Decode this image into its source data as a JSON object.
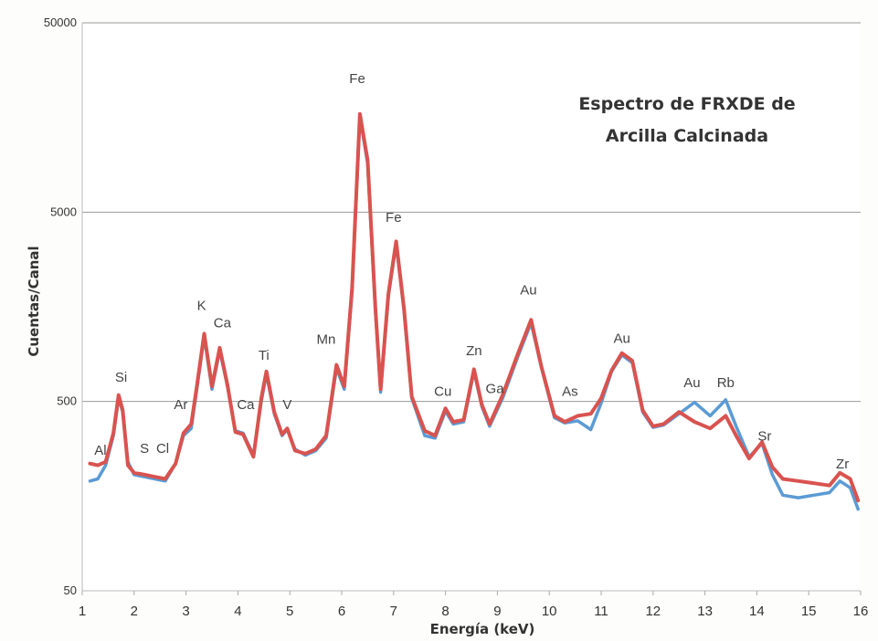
{
  "chart_data": {
    "type": "line",
    "title_lines": [
      "Espectro de FRXDE de",
      "Arcilla Calcinada"
    ],
    "xlabel": "Energía (keV)",
    "ylabel": "Cuentas/Canal",
    "xlim": [
      1,
      16
    ],
    "ylim": [
      50,
      50000
    ],
    "yscale": "log",
    "x_ticks": [
      {
        "v": 1,
        "label": "1"
      },
      {
        "v": 2,
        "label": "2"
      },
      {
        "v": 3,
        "label": "3"
      },
      {
        "v": 4,
        "label": "4"
      },
      {
        "v": 5,
        "label": "5"
      },
      {
        "v": 6,
        "label": "6"
      },
      {
        "v": 7,
        "label": "7"
      },
      {
        "v": 8,
        "label": "8"
      },
      {
        "v": 9,
        "label": "9"
      },
      {
        "v": 10,
        "label": "10"
      },
      {
        "v": 11,
        "label": "11"
      },
      {
        "v": 12,
        "label": "12"
      },
      {
        "v": 13,
        "label": "13"
      },
      {
        "v": 14,
        "label": "14"
      },
      {
        "v": 15,
        "label": "15"
      },
      {
        "v": 16,
        "label": "16"
      }
    ],
    "y_ticks": [
      {
        "v": 50,
        "label": "50"
      },
      {
        "v": 500,
        "label": "500"
      },
      {
        "v": 5000,
        "label": "5000"
      },
      {
        "v": 50000,
        "label": "50000"
      }
    ],
    "grid": "horizontal",
    "series": [
      {
        "color": "#5b9bd5",
        "points": [
          [
            1.15,
            190
          ],
          [
            1.3,
            195
          ],
          [
            1.45,
            230
          ],
          [
            1.6,
            330
          ],
          [
            1.7,
            520
          ],
          [
            1.78,
            440
          ],
          [
            1.88,
            240
          ],
          [
            2.0,
            205
          ],
          [
            2.2,
            200
          ],
          [
            2.4,
            195
          ],
          [
            2.6,
            190
          ],
          [
            2.8,
            235
          ],
          [
            2.95,
            330
          ],
          [
            3.1,
            360
          ],
          [
            3.2,
            560
          ],
          [
            3.35,
            1100
          ],
          [
            3.5,
            580
          ],
          [
            3.65,
            930
          ],
          [
            3.8,
            600
          ],
          [
            3.95,
            350
          ],
          [
            4.1,
            340
          ],
          [
            4.3,
            260
          ],
          [
            4.45,
            500
          ],
          [
            4.55,
            700
          ],
          [
            4.7,
            430
          ],
          [
            4.85,
            330
          ],
          [
            4.95,
            355
          ],
          [
            5.1,
            280
          ],
          [
            5.3,
            260
          ],
          [
            5.5,
            275
          ],
          [
            5.7,
            320
          ],
          [
            5.9,
            750
          ],
          [
            6.05,
            580
          ],
          [
            6.2,
            1900
          ],
          [
            6.35,
            16000
          ],
          [
            6.5,
            9000
          ],
          [
            6.65,
            1500
          ],
          [
            6.75,
            560
          ],
          [
            6.9,
            1800
          ],
          [
            7.05,
            3400
          ],
          [
            7.2,
            1500
          ],
          [
            7.35,
            520
          ],
          [
            7.6,
            330
          ],
          [
            7.8,
            320
          ],
          [
            8.0,
            445
          ],
          [
            8.15,
            380
          ],
          [
            8.35,
            390
          ],
          [
            8.55,
            720
          ],
          [
            8.7,
            470
          ],
          [
            8.85,
            370
          ],
          [
            9.1,
            520
          ],
          [
            9.4,
            870
          ],
          [
            9.65,
            1300
          ],
          [
            9.85,
            750
          ],
          [
            10.1,
            410
          ],
          [
            10.3,
            385
          ],
          [
            10.55,
            395
          ],
          [
            10.8,
            355
          ],
          [
            11.0,
            490
          ],
          [
            11.2,
            720
          ],
          [
            11.4,
            880
          ],
          [
            11.6,
            800
          ],
          [
            11.8,
            440
          ],
          [
            12.0,
            365
          ],
          [
            12.2,
            375
          ],
          [
            12.5,
            430
          ],
          [
            12.8,
            495
          ],
          [
            13.1,
            420
          ],
          [
            13.4,
            510
          ],
          [
            13.6,
            370
          ],
          [
            13.85,
            255
          ],
          [
            14.1,
            300
          ],
          [
            14.3,
            205
          ],
          [
            14.5,
            160
          ],
          [
            14.8,
            155
          ],
          [
            15.1,
            160
          ],
          [
            15.4,
            165
          ],
          [
            15.6,
            190
          ],
          [
            15.8,
            175
          ],
          [
            15.95,
            135
          ]
        ]
      },
      {
        "color": "#d9534f",
        "points": [
          [
            1.15,
            235
          ],
          [
            1.3,
            230
          ],
          [
            1.45,
            240
          ],
          [
            1.6,
            340
          ],
          [
            1.7,
            540
          ],
          [
            1.78,
            450
          ],
          [
            1.88,
            230
          ],
          [
            2.0,
            210
          ],
          [
            2.2,
            205
          ],
          [
            2.4,
            200
          ],
          [
            2.6,
            195
          ],
          [
            2.8,
            235
          ],
          [
            2.95,
            340
          ],
          [
            3.1,
            380
          ],
          [
            3.2,
            580
          ],
          [
            3.35,
            1140
          ],
          [
            3.5,
            600
          ],
          [
            3.65,
            960
          ],
          [
            3.8,
            610
          ],
          [
            3.95,
            345
          ],
          [
            4.1,
            335
          ],
          [
            4.3,
            255
          ],
          [
            4.45,
            520
          ],
          [
            4.55,
            720
          ],
          [
            4.7,
            440
          ],
          [
            4.85,
            335
          ],
          [
            4.95,
            360
          ],
          [
            5.1,
            275
          ],
          [
            5.3,
            265
          ],
          [
            5.5,
            280
          ],
          [
            5.7,
            330
          ],
          [
            5.9,
            780
          ],
          [
            6.05,
            600
          ],
          [
            6.2,
            2000
          ],
          [
            6.35,
            16500
          ],
          [
            6.5,
            9400
          ],
          [
            6.65,
            1550
          ],
          [
            6.75,
            580
          ],
          [
            6.9,
            1850
          ],
          [
            7.05,
            3500
          ],
          [
            7.2,
            1550
          ],
          [
            7.35,
            530
          ],
          [
            7.6,
            350
          ],
          [
            7.8,
            330
          ],
          [
            8.0,
            460
          ],
          [
            8.15,
            390
          ],
          [
            8.35,
            400
          ],
          [
            8.55,
            740
          ],
          [
            8.7,
            480
          ],
          [
            8.85,
            380
          ],
          [
            9.1,
            540
          ],
          [
            9.4,
            900
          ],
          [
            9.65,
            1350
          ],
          [
            9.85,
            760
          ],
          [
            10.1,
            420
          ],
          [
            10.3,
            390
          ],
          [
            10.55,
            420
          ],
          [
            10.8,
            430
          ],
          [
            11.0,
            520
          ],
          [
            11.2,
            730
          ],
          [
            11.4,
            900
          ],
          [
            11.6,
            820
          ],
          [
            11.8,
            450
          ],
          [
            12.0,
            370
          ],
          [
            12.2,
            380
          ],
          [
            12.5,
            440
          ],
          [
            12.8,
            390
          ],
          [
            13.1,
            360
          ],
          [
            13.4,
            420
          ],
          [
            13.6,
            330
          ],
          [
            13.85,
            250
          ],
          [
            14.1,
            305
          ],
          [
            14.3,
            225
          ],
          [
            14.5,
            195
          ],
          [
            14.8,
            190
          ],
          [
            15.1,
            185
          ],
          [
            15.4,
            180
          ],
          [
            15.6,
            210
          ],
          [
            15.8,
            195
          ],
          [
            15.95,
            150
          ]
        ]
      }
    ],
    "annotations": [
      {
        "text": "Al",
        "x": 1.35,
        "y": 262
      },
      {
        "text": "Si",
        "x": 1.75,
        "y": 635
      },
      {
        "text": "S",
        "x": 2.2,
        "y": 268
      },
      {
        "text": "Cl",
        "x": 2.55,
        "y": 268
      },
      {
        "text": "Ar",
        "x": 2.9,
        "y": 455
      },
      {
        "text": "K",
        "x": 3.3,
        "y": 1520
      },
      {
        "text": "Ca",
        "x": 3.7,
        "y": 1230
      },
      {
        "text": "Ca",
        "x": 4.15,
        "y": 455
      },
      {
        "text": "Ti",
        "x": 4.5,
        "y": 830
      },
      {
        "text": "V",
        "x": 4.95,
        "y": 455
      },
      {
        "text": "Mn",
        "x": 5.7,
        "y": 1010
      },
      {
        "text": "Fe",
        "x": 6.3,
        "y": 24000
      },
      {
        "text": "Fe",
        "x": 7.0,
        "y": 4450
      },
      {
        "text": "Cu",
        "x": 7.95,
        "y": 535
      },
      {
        "text": "Zn",
        "x": 8.55,
        "y": 880
      },
      {
        "text": "Ga",
        "x": 8.95,
        "y": 555
      },
      {
        "text": "Au",
        "x": 9.6,
        "y": 1840
      },
      {
        "text": "As",
        "x": 10.4,
        "y": 535
      },
      {
        "text": "Au",
        "x": 11.4,
        "y": 1020
      },
      {
        "text": "Au",
        "x": 12.75,
        "y": 595
      },
      {
        "text": "Rb",
        "x": 13.4,
        "y": 595
      },
      {
        "text": "Sr",
        "x": 14.15,
        "y": 310
      },
      {
        "text": "Zr",
        "x": 15.65,
        "y": 222
      }
    ]
  }
}
